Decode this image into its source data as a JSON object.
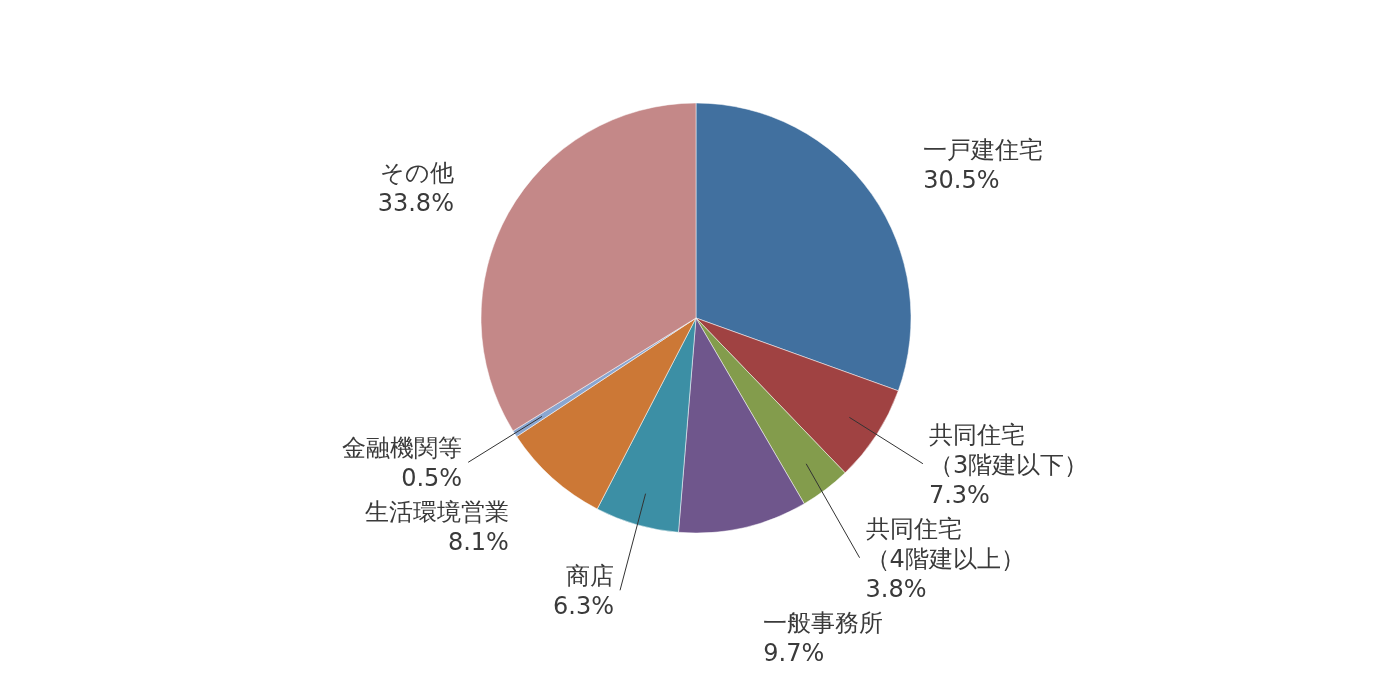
{
  "chart_data": {
    "type": "pie",
    "categories": [
      "一戸建住宅",
      "共同住宅（3階建以下）",
      "共同住宅（4階建以上）",
      "一般事務所",
      "商店",
      "生活環境営業",
      "金融機関等",
      "その他"
    ],
    "values": [
      30.5,
      7.3,
      3.8,
      9.7,
      6.3,
      8.1,
      0.5,
      33.8
    ],
    "colors": [
      "#41709f",
      "#a04242",
      "#839c4c",
      "#6f568c",
      "#3c8fa5",
      "#cc7836",
      "#8aa6d0",
      "#c48888"
    ],
    "value_labels": [
      "30.5%",
      "7.3%",
      "3.8%",
      "9.7%",
      "6.3%",
      "8.1%",
      "0.5%",
      "33.8%"
    ]
  }
}
